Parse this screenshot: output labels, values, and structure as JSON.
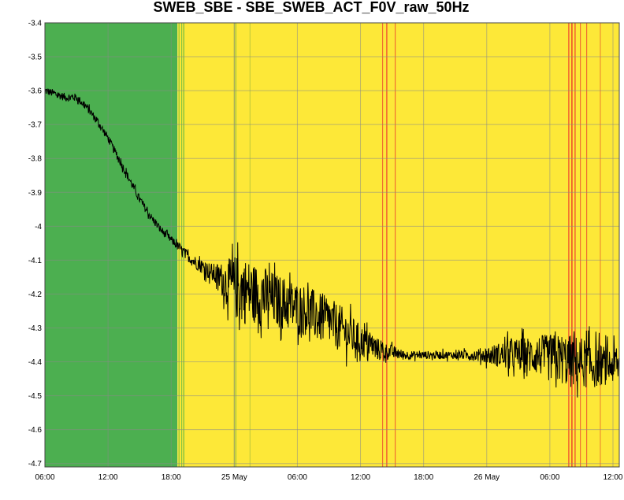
{
  "chart_data": {
    "type": "line",
    "title": "SWEB_SBE - SBE_SWEB_ACT_F0V_raw_50Hz",
    "xlabel": "",
    "ylabel": "",
    "x_unit": "hours from 24 May 06:00",
    "xlim": [
      0,
      54.6
    ],
    "ylim": [
      -4.71,
      -3.4
    ],
    "yticks": [
      -3.4,
      -3.5,
      -3.6,
      -3.7,
      -3.8,
      -3.9,
      -4,
      -4.1,
      -4.2,
      -4.3,
      -4.4,
      -4.5,
      -4.6,
      -4.7
    ],
    "ytick_labels": [
      "-3.4",
      "-3.5",
      "-3.6",
      "-3.7",
      "-3.8",
      "-3.9",
      "-4",
      "-4.1",
      "-4.2",
      "-4.3",
      "-4.4",
      "-4.5",
      "-4.6",
      "-4.7"
    ],
    "xticks": [
      0,
      6,
      12,
      18,
      24,
      30,
      36,
      42,
      48,
      54
    ],
    "xtick_labels": [
      "06:00",
      "12:00",
      "18:00",
      "25 May",
      "06:00",
      "12:00",
      "18:00",
      "26 May",
      "06:00",
      "12:00"
    ],
    "grid": true,
    "background_bands": [
      {
        "from": 0,
        "to": 12.6,
        "color": "#4caf50"
      },
      {
        "from": 12.6,
        "to": 54.6,
        "color": "#fde838"
      }
    ],
    "band_lines": [
      {
        "x": 12.75,
        "color": "#8cc63f"
      },
      {
        "x": 13.0,
        "color": "#8cc63f"
      },
      {
        "x": 13.2,
        "color": "#6dbb45"
      },
      {
        "x": 18.0,
        "color": "#b8c93a"
      },
      {
        "x": 18.15,
        "color": "#9abf3d"
      },
      {
        "x": 19.5,
        "color": "#c7cc3a"
      },
      {
        "x": 32.1,
        "color": "#f07030"
      },
      {
        "x": 32.5,
        "color": "#f04030"
      },
      {
        "x": 33.3,
        "color": "#f07030"
      },
      {
        "x": 49.8,
        "color": "#f04030"
      },
      {
        "x": 50.1,
        "color": "#e82020"
      },
      {
        "x": 50.4,
        "color": "#f04030"
      },
      {
        "x": 50.9,
        "color": "#f07030"
      },
      {
        "x": 51.5,
        "color": "#f07030"
      },
      {
        "x": 52.8,
        "color": "#f09030"
      }
    ],
    "series": [
      {
        "color": "#000000",
        "x": [
          0,
          1,
          2,
          3,
          4,
          5,
          6,
          7,
          8,
          9,
          10,
          11,
          12,
          13,
          14,
          15,
          16,
          17,
          18,
          19,
          20,
          21,
          22,
          23,
          24,
          25,
          26,
          27,
          28,
          29,
          30,
          31,
          32,
          33,
          34,
          35,
          36,
          37,
          38,
          39,
          40,
          41,
          42,
          43,
          44,
          45,
          46,
          47,
          48,
          49,
          50,
          51,
          52,
          53,
          54,
          54.6
        ],
        "y": [
          -3.6,
          -3.61,
          -3.62,
          -3.62,
          -3.65,
          -3.69,
          -3.74,
          -3.8,
          -3.86,
          -3.92,
          -3.97,
          -4.01,
          -4.04,
          -4.07,
          -4.1,
          -4.12,
          -4.14,
          -4.16,
          -4.18,
          -4.19,
          -4.2,
          -4.21,
          -4.22,
          -4.23,
          -4.24,
          -4.25,
          -4.27,
          -4.28,
          -4.3,
          -4.32,
          -4.34,
          -4.35,
          -4.37,
          -4.37,
          -4.38,
          -4.38,
          -4.38,
          -4.38,
          -4.38,
          -4.38,
          -4.38,
          -4.38,
          -4.38,
          -4.38,
          -4.38,
          -4.38,
          -4.38,
          -4.38,
          -4.39,
          -4.39,
          -4.4,
          -4.4,
          -4.41,
          -4.41,
          -4.41,
          -4.41
        ],
        "noise": [
          0.012,
          0.012,
          0.012,
          0.012,
          0.012,
          0.012,
          0.012,
          0.012,
          0.012,
          0.012,
          0.012,
          0.012,
          0.012,
          0.014,
          0.018,
          0.022,
          0.03,
          0.055,
          0.095,
          0.1,
          0.09,
          0.09,
          0.08,
          0.08,
          0.075,
          0.075,
          0.075,
          0.07,
          0.07,
          0.06,
          0.05,
          0.04,
          0.03,
          0.02,
          0.015,
          0.012,
          0.012,
          0.012,
          0.012,
          0.012,
          0.014,
          0.018,
          0.025,
          0.035,
          0.045,
          0.05,
          0.055,
          0.06,
          0.07,
          0.075,
          0.08,
          0.075,
          0.07,
          0.06,
          0.055,
          0.055
        ]
      }
    ]
  }
}
